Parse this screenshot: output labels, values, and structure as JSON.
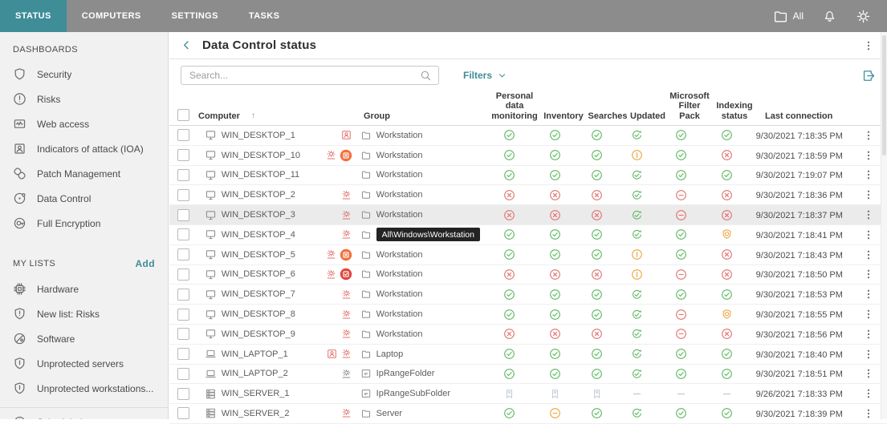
{
  "topnav": {
    "tabs": [
      {
        "label": "STATUS",
        "active": true
      },
      {
        "label": "COMPUTERS",
        "active": false
      },
      {
        "label": "SETTINGS",
        "active": false
      },
      {
        "label": "TASKS",
        "active": false
      }
    ],
    "group_filter_label": "All"
  },
  "sidebar": {
    "dashboards_title": "DASHBOARDS",
    "dashboard_items": [
      {
        "icon": "shield",
        "label": "Security"
      },
      {
        "icon": "alert-circle",
        "label": "Risks"
      },
      {
        "icon": "web-access",
        "label": "Web access"
      },
      {
        "icon": "ioa",
        "label": "Indicators of attack (IOA)"
      },
      {
        "icon": "patch",
        "label": "Patch Management"
      },
      {
        "icon": "data-control",
        "label": "Data Control"
      },
      {
        "icon": "encryption",
        "label": "Full Encryption"
      }
    ],
    "mylists_title": "MY LISTS",
    "add_label": "Add",
    "mylist_items": [
      {
        "icon": "hardware",
        "label": "Hardware"
      },
      {
        "icon": "shield-alert",
        "label": "New list: Risks"
      },
      {
        "icon": "software",
        "label": "Software"
      },
      {
        "icon": "shield-bar",
        "label": "Unprotected servers"
      },
      {
        "icon": "shield-bar",
        "label": "Unprotected workstations..."
      }
    ],
    "footer_items": [
      {
        "icon": "clock",
        "label": "Scheduled reports"
      }
    ]
  },
  "main": {
    "title": "Data Control status",
    "search_placeholder": "Search...",
    "filters_label": "Filters",
    "columns": {
      "computer": "Computer",
      "group": "Group",
      "statuses": [
        "Personal data monitoring",
        "Inventory",
        "Searches",
        "Updated",
        "Microsoft Filter Pack",
        "Indexing status"
      ],
      "last": "Last connection"
    },
    "rows": [
      {
        "computer": "WIN_DESKTOP_1",
        "type": "desktop",
        "alerts": [
          "user-badge"
        ],
        "group_icon": "folder",
        "group": "Workstation",
        "statuses": [
          "ok",
          "ok",
          "ok",
          "updated",
          "ok",
          "ok"
        ],
        "last_connection": "9/30/2021 7:18:35 PM",
        "highlighted": false
      },
      {
        "computer": "WIN_DESKTOP_10",
        "type": "desktop",
        "alerts": [
          "gear-red",
          "iso-orange"
        ],
        "group_icon": "folder",
        "group": "Workstation",
        "statuses": [
          "ok",
          "ok",
          "ok",
          "pending",
          "ok",
          "error"
        ],
        "last_connection": "9/30/2021 7:18:59 PM",
        "highlighted": false
      },
      {
        "computer": "WIN_DESKTOP_11",
        "type": "desktop",
        "alerts": [],
        "group_icon": "folder",
        "group": "Workstation",
        "statuses": [
          "ok",
          "ok",
          "ok",
          "updated",
          "ok",
          "ok"
        ],
        "last_connection": "9/30/2021 7:19:07 PM",
        "highlighted": false
      },
      {
        "computer": "WIN_DESKTOP_2",
        "type": "desktop",
        "alerts": [
          "gear-red"
        ],
        "group_icon": "folder",
        "group": "Workstation",
        "statuses": [
          "error",
          "error",
          "error",
          "updated",
          "disabled-red",
          "error"
        ],
        "last_connection": "9/30/2021 7:18:36 PM",
        "highlighted": false
      },
      {
        "computer": "WIN_DESKTOP_3",
        "type": "desktop",
        "alerts": [
          "gear-red"
        ],
        "group_icon": "folder",
        "group": "Workstation",
        "statuses": [
          "error",
          "error",
          "error",
          "updated",
          "disabled-red",
          "error"
        ],
        "last_connection": "9/30/2021 7:18:37 PM",
        "highlighted": true
      },
      {
        "computer": "WIN_DESKTOP_4",
        "type": "desktop",
        "alerts": [
          "gear-red"
        ],
        "group_icon": "folder",
        "group": "Workstation",
        "group_tooltip": "All\\Windows\\Workstation",
        "statuses": [
          "ok",
          "ok",
          "ok",
          "updated",
          "ok",
          "indexing"
        ],
        "last_connection": "9/30/2021 7:18:41 PM",
        "highlighted": false
      },
      {
        "computer": "WIN_DESKTOP_5",
        "type": "desktop",
        "alerts": [
          "gear-red",
          "iso-orange"
        ],
        "group_icon": "folder",
        "group": "Workstation",
        "statuses": [
          "ok",
          "ok",
          "ok",
          "pending",
          "ok",
          "error"
        ],
        "last_connection": "9/30/2021 7:18:43 PM",
        "highlighted": false
      },
      {
        "computer": "WIN_DESKTOP_6",
        "type": "desktop",
        "alerts": [
          "gear-red",
          "iso-red"
        ],
        "group_icon": "folder",
        "group": "Workstation",
        "statuses": [
          "error",
          "error",
          "error",
          "pending",
          "disabled-red",
          "error"
        ],
        "last_connection": "9/30/2021 7:18:50 PM",
        "highlighted": false
      },
      {
        "computer": "WIN_DESKTOP_7",
        "type": "desktop",
        "alerts": [
          "gear-red"
        ],
        "group_icon": "folder",
        "group": "Workstation",
        "statuses": [
          "ok",
          "ok",
          "ok",
          "updated",
          "ok",
          "ok"
        ],
        "last_connection": "9/30/2021 7:18:53 PM",
        "highlighted": false
      },
      {
        "computer": "WIN_DESKTOP_8",
        "type": "desktop",
        "alerts": [
          "gear-red"
        ],
        "group_icon": "folder",
        "group": "Workstation",
        "statuses": [
          "ok",
          "ok",
          "ok",
          "updated",
          "disabled-red",
          "indexing"
        ],
        "last_connection": "9/30/2021 7:18:55 PM",
        "highlighted": false
      },
      {
        "computer": "WIN_DESKTOP_9",
        "type": "desktop",
        "alerts": [
          "gear-red"
        ],
        "group_icon": "folder",
        "group": "Workstation",
        "statuses": [
          "error",
          "error",
          "error",
          "updated",
          "disabled-red",
          "error"
        ],
        "last_connection": "9/30/2021 7:18:56 PM",
        "highlighted": false
      },
      {
        "computer": "WIN_LAPTOP_1",
        "type": "laptop",
        "alerts": [
          "user-badge",
          "gear-red"
        ],
        "group_icon": "folder",
        "group": "Laptop",
        "statuses": [
          "ok",
          "ok",
          "ok",
          "updated",
          "ok",
          "ok"
        ],
        "last_connection": "9/30/2021 7:18:40 PM",
        "highlighted": false
      },
      {
        "computer": "WIN_LAPTOP_2",
        "type": "laptop",
        "alerts": [
          "gear-gray"
        ],
        "group_icon": "ip-folder",
        "group": "IpRangeFolder",
        "statuses": [
          "ok",
          "ok",
          "ok",
          "updated",
          "ok",
          "ok"
        ],
        "last_connection": "9/30/2021 7:18:51 PM",
        "highlighted": false
      },
      {
        "computer": "WIN_SERVER_1",
        "type": "server",
        "alerts": [],
        "group_icon": "ip-folder",
        "group": "IpRangeSubFolder",
        "statuses": [
          "not-available",
          "not-available",
          "not-available",
          "none",
          "none",
          "none"
        ],
        "last_connection": "9/26/2021 7:18:33 PM",
        "highlighted": false
      },
      {
        "computer": "WIN_SERVER_2",
        "type": "server",
        "alerts": [
          "gear-red"
        ],
        "group_icon": "folder",
        "group": "Server",
        "statuses": [
          "ok",
          "disabled-orange",
          "ok",
          "updated",
          "ok",
          "ok"
        ],
        "last_connection": "9/30/2021 7:18:39 PM",
        "highlighted": false
      }
    ]
  }
}
